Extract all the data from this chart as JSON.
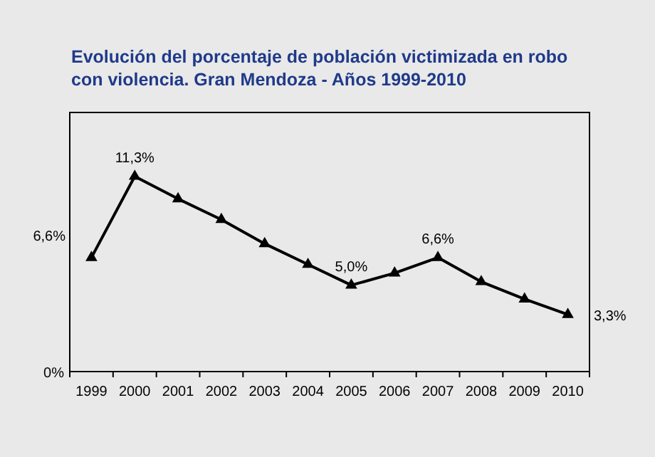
{
  "chart_data": {
    "type": "line",
    "title": "Evolución del porcentaje de población victimizada en  robo con violencia. Gran Mendoza - Años 1999-2010",
    "categories": [
      "1999",
      "2000",
      "2001",
      "2002",
      "2003",
      "2004",
      "2005",
      "2006",
      "2007",
      "2008",
      "2009",
      "2010"
    ],
    "series": [
      {
        "color": "#000000",
        "values": [
          6.6,
          11.3,
          10.0,
          8.8,
          7.4,
          6.2,
          5.0,
          5.7,
          6.6,
          5.2,
          4.2,
          3.3
        ],
        "value_labels": [
          "6,6%",
          "11,3%",
          null,
          null,
          null,
          null,
          "5,0%",
          null,
          "6,6%",
          null,
          null,
          "3,3%"
        ]
      }
    ],
    "ylim": [
      0,
      15
    ],
    "annotations": [
      "0%"
    ],
    "marker": "triangle",
    "line_style": "solid"
  }
}
